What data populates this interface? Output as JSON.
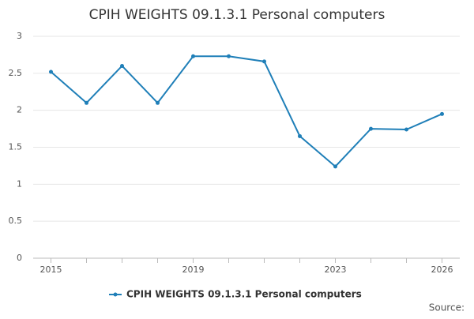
{
  "chart_data": {
    "type": "line",
    "title": "CPIH WEIGHTS 09.1.3.1 Personal computers",
    "x": [
      2015,
      2016,
      2017,
      2018,
      2019,
      2020,
      2021,
      2022,
      2023,
      2024,
      2025,
      2026
    ],
    "series": [
      {
        "name": "CPIH WEIGHTS 09.1.3.1 Personal computers",
        "color": "#1f7fb8",
        "values": [
          2.52,
          2.1,
          2.6,
          2.1,
          2.73,
          2.73,
          2.66,
          1.65,
          1.24,
          1.75,
          1.74,
          1.95
        ]
      }
    ],
    "xlim": [
      2014.5,
      2026.5
    ],
    "xticks": [
      2015,
      2019,
      2023,
      2026
    ],
    "ylim": [
      0,
      3
    ],
    "yticks": [
      0,
      0.5,
      1,
      1.5,
      2,
      2.5,
      3
    ],
    "grid": true,
    "source": "Source:"
  }
}
